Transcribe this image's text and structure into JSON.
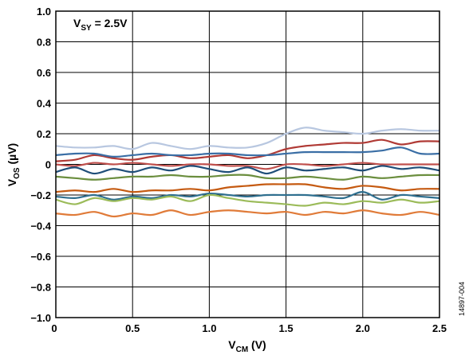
{
  "chart_data": {
    "type": "line",
    "xlabel": {
      "main": "V",
      "sub": "CM",
      "rest": " (V)"
    },
    "ylabel": {
      "main": "V",
      "sub": "OS",
      "rest": " (µV)"
    },
    "xlim": [
      0,
      2.5
    ],
    "ylim": [
      -1.0,
      1.0
    ],
    "x_ticks": [
      "0",
      "0.5",
      "1.0",
      "1.5",
      "2.0",
      "2.5"
    ],
    "y_ticks": [
      "1.0",
      "0.8",
      "0.6",
      "0.4",
      "0.2",
      "0",
      "−0.2",
      "−0.4",
      "−0.6",
      "−0.8",
      "−1.0"
    ],
    "grid": true,
    "annotation": {
      "main": "V",
      "sub": "SY",
      "rest": " = 2.5V"
    },
    "figure_id": "14897-004",
    "x": [
      0,
      0.125,
      0.25,
      0.375,
      0.5,
      0.625,
      0.75,
      0.875,
      1.0,
      1.125,
      1.25,
      1.375,
      1.5,
      1.625,
      1.75,
      1.875,
      2.0,
      2.125,
      2.25,
      2.375,
      2.5
    ],
    "series": [
      {
        "color": "#b8c7e0",
        "values": [
          0.12,
          0.11,
          0.11,
          0.12,
          0.1,
          0.14,
          0.12,
          0.1,
          0.12,
          0.11,
          0.11,
          0.14,
          0.2,
          0.24,
          0.22,
          0.21,
          0.2,
          0.22,
          0.23,
          0.22,
          0.22
        ]
      },
      {
        "color": "#b03a35",
        "values": [
          0.02,
          0.03,
          0.06,
          0.04,
          0.03,
          0.05,
          0.06,
          0.04,
          0.05,
          0.06,
          0.04,
          0.06,
          0.1,
          0.12,
          0.13,
          0.14,
          0.14,
          0.16,
          0.13,
          0.15,
          0.15
        ]
      },
      {
        "color": "#3a6ea5",
        "values": [
          0.06,
          0.07,
          0.07,
          0.05,
          0.06,
          0.07,
          0.06,
          0.06,
          0.07,
          0.07,
          0.06,
          0.06,
          0.07,
          0.08,
          0.08,
          0.08,
          0.08,
          0.09,
          0.11,
          0.07,
          0.07
        ]
      },
      {
        "color": "#c0504d",
        "values": [
          0.0,
          -0.01,
          0.01,
          0.0,
          0.01,
          0.0,
          -0.01,
          0.0,
          0.0,
          -0.01,
          -0.01,
          -0.03,
          0.0,
          0.0,
          -0.01,
          0.0,
          0.01,
          0.0,
          0.0,
          0.0,
          0.0
        ]
      },
      {
        "color": "#1f4e79",
        "values": [
          -0.05,
          -0.02,
          -0.06,
          -0.03,
          -0.05,
          -0.02,
          -0.04,
          -0.01,
          -0.03,
          -0.05,
          -0.02,
          -0.06,
          -0.02,
          -0.04,
          -0.03,
          -0.02,
          -0.04,
          -0.01,
          -0.03,
          -0.02,
          -0.04
        ]
      },
      {
        "color": "#6b8e3e",
        "values": [
          -0.08,
          -0.09,
          -0.1,
          -0.09,
          -0.08,
          -0.08,
          -0.07,
          -0.08,
          -0.08,
          -0.07,
          -0.07,
          -0.09,
          -0.09,
          -0.08,
          -0.09,
          -0.1,
          -0.08,
          -0.09,
          -0.08,
          -0.07,
          -0.07
        ]
      },
      {
        "color": "#c55a11",
        "values": [
          -0.18,
          -0.17,
          -0.18,
          -0.16,
          -0.18,
          -0.17,
          -0.17,
          -0.16,
          -0.17,
          -0.15,
          -0.14,
          -0.13,
          -0.13,
          -0.13,
          -0.15,
          -0.16,
          -0.14,
          -0.15,
          -0.17,
          -0.16,
          -0.16
        ]
      },
      {
        "color": "#2f6f8f",
        "values": [
          -0.21,
          -0.22,
          -0.2,
          -0.23,
          -0.21,
          -0.22,
          -0.2,
          -0.21,
          -0.19,
          -0.2,
          -0.21,
          -0.2,
          -0.2,
          -0.2,
          -0.21,
          -0.22,
          -0.18,
          -0.23,
          -0.2,
          -0.21,
          -0.22
        ]
      },
      {
        "color": "#9bbb59",
        "values": [
          -0.23,
          -0.26,
          -0.22,
          -0.24,
          -0.22,
          -0.23,
          -0.21,
          -0.24,
          -0.2,
          -0.22,
          -0.24,
          -0.25,
          -0.26,
          -0.27,
          -0.25,
          -0.26,
          -0.24,
          -0.25,
          -0.23,
          -0.25,
          -0.24
        ]
      },
      {
        "color": "#e07b39",
        "values": [
          -0.32,
          -0.33,
          -0.31,
          -0.34,
          -0.32,
          -0.33,
          -0.3,
          -0.33,
          -0.31,
          -0.3,
          -0.31,
          -0.32,
          -0.31,
          -0.33,
          -0.31,
          -0.32,
          -0.3,
          -0.32,
          -0.33,
          -0.31,
          -0.33
        ]
      }
    ]
  }
}
